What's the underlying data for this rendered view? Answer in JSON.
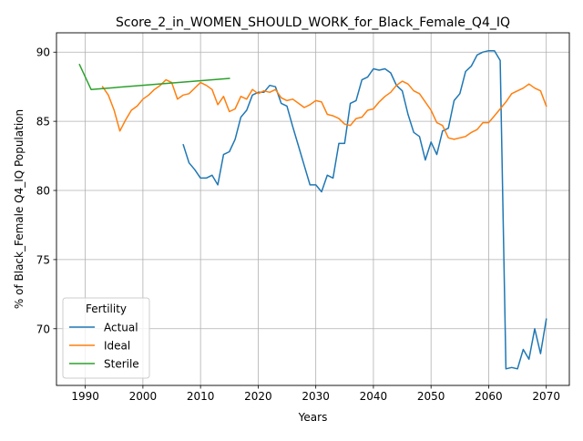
{
  "chart_data": {
    "type": "line",
    "title": "Score_2_in_WOMEN_SHOULD_WORK_for_Black_Female_Q4_IQ",
    "xlabel": "Years",
    "ylabel": "% of Black_Female Q4_IQ Population",
    "xlim": [
      1985,
      2074
    ],
    "ylim": [
      65.9,
      91.4
    ],
    "xticks": [
      1990,
      2000,
      2010,
      2020,
      2030,
      2040,
      2050,
      2060,
      2070
    ],
    "yticks": [
      70,
      75,
      80,
      85,
      90
    ],
    "grid": true,
    "legend": {
      "title": "Fertility",
      "placement": "lower-left"
    },
    "series": [
      {
        "name": "Actual",
        "color": "#1f77b4",
        "x": [
          2007,
          2008,
          2009,
          2010,
          2011,
          2012,
          2013,
          2014,
          2015,
          2016,
          2017,
          2018,
          2019,
          2020,
          2021,
          2022,
          2023,
          2024,
          2025,
          2026,
          2027,
          2028,
          2029,
          2030,
          2031,
          2032,
          2033,
          2034,
          2035,
          2036,
          2037,
          2038,
          2039,
          2040,
          2041,
          2042,
          2043,
          2044,
          2045,
          2046,
          2047,
          2048,
          2049,
          2050,
          2051,
          2052,
          2053,
          2054,
          2055,
          2056,
          2057,
          2058,
          2059,
          2060,
          2061,
          2062,
          2063,
          2064,
          2065,
          2066,
          2067,
          2068,
          2069,
          2070
        ],
        "values": [
          83.3,
          82.0,
          81.5,
          80.9,
          80.9,
          81.1,
          80.4,
          82.6,
          82.8,
          83.7,
          85.3,
          85.8,
          86.9,
          87.1,
          87.1,
          87.6,
          87.5,
          86.3,
          86.1,
          84.6,
          83.2,
          81.8,
          80.4,
          80.4,
          79.9,
          81.1,
          80.9,
          83.4,
          83.4,
          86.3,
          86.5,
          88.0,
          88.2,
          88.8,
          88.7,
          88.8,
          88.5,
          87.6,
          87.2,
          85.5,
          84.2,
          83.9,
          82.2,
          83.5,
          82.6,
          84.3,
          84.5,
          86.5,
          87.0,
          88.6,
          89.0,
          89.8,
          90.0,
          90.1,
          90.1,
          89.4,
          67.1,
          67.2,
          67.1,
          68.5,
          67.8,
          70.0,
          68.2,
          70.7
        ]
      },
      {
        "name": "Ideal",
        "color": "#ff7f0e",
        "x": [
          1993,
          1994,
          1995,
          1996,
          1997,
          1998,
          1999,
          2000,
          2001,
          2002,
          2003,
          2004,
          2005,
          2006,
          2007,
          2008,
          2009,
          2010,
          2011,
          2012,
          2013,
          2014,
          2015,
          2016,
          2017,
          2018,
          2019,
          2020,
          2021,
          2022,
          2023,
          2024,
          2025,
          2026,
          2027,
          2028,
          2029,
          2030,
          2031,
          2032,
          2033,
          2034,
          2035,
          2036,
          2037,
          2038,
          2039,
          2040,
          2041,
          2042,
          2043,
          2044,
          2045,
          2046,
          2047,
          2048,
          2049,
          2050,
          2051,
          2052,
          2053,
          2054,
          2055,
          2056,
          2057,
          2058,
          2059,
          2060,
          2061,
          2062,
          2063,
          2064,
          2065,
          2066,
          2067,
          2068,
          2069,
          2070
        ],
        "values": [
          87.5,
          86.9,
          85.8,
          84.3,
          85.1,
          85.8,
          86.1,
          86.6,
          86.9,
          87.3,
          87.6,
          88.0,
          87.8,
          86.6,
          86.9,
          87.0,
          87.4,
          87.8,
          87.6,
          87.3,
          86.2,
          86.8,
          85.7,
          85.9,
          86.8,
          86.6,
          87.3,
          87.0,
          87.2,
          87.1,
          87.3,
          86.7,
          86.5,
          86.6,
          86.3,
          86.0,
          86.2,
          86.5,
          86.4,
          85.5,
          85.4,
          85.2,
          84.8,
          84.7,
          85.2,
          85.3,
          85.8,
          85.9,
          86.4,
          86.8,
          87.1,
          87.6,
          87.9,
          87.7,
          87.2,
          87.0,
          86.4,
          85.8,
          84.9,
          84.7,
          83.8,
          83.7,
          83.8,
          83.9,
          84.2,
          84.4,
          84.9,
          84.9,
          85.4,
          85.9,
          86.4,
          87.0,
          87.2,
          87.4,
          87.7,
          87.4,
          87.2,
          86.1
        ]
      },
      {
        "name": "Sterile",
        "color": "#2ca02c",
        "x": [
          1989,
          1991,
          2015
        ],
        "values": [
          89.1,
          87.3,
          88.1
        ]
      }
    ]
  }
}
